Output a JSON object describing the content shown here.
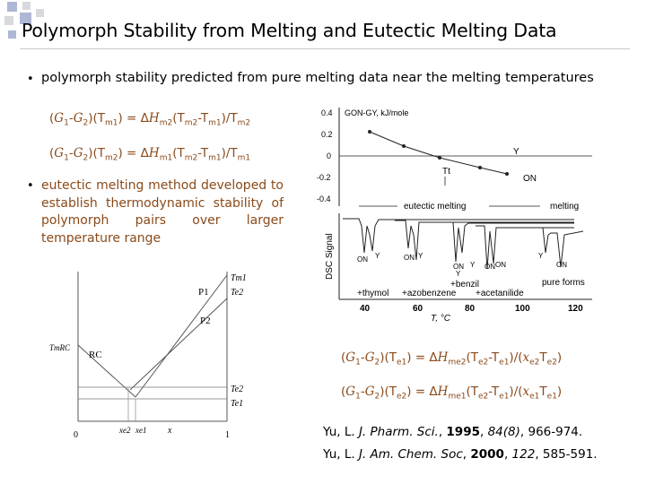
{
  "title": "Polymorph Stability from Melting and Eutectic Melting Data",
  "colors": {
    "text_brown": "#8a4a1a",
    "square_blue": "#aeb7d6",
    "square_grey": "#d7d9dd"
  },
  "bullets": [
    {
      "text": "polymorph stability predicted from pure melting data near the melting temperatures"
    },
    {
      "text": "eutectic melting method developed to establish thermodynamic stability of polymorph pairs over larger temperature range"
    }
  ],
  "equations": {
    "eq1": "(G1-G2)(Tm1) = ΔHm2(Tm2-Tm1)/Tm2",
    "eq2": "(G1-G2)(Tm2) = ΔHm1(Tm2-Tm1)/Tm1",
    "eq3": "(G1-G2)(Te1) = ΔHme2(Te2-Te1)/(xe2Te2)",
    "eq4": "(G1-G2)(Te2) = ΔHme1(Te2-Te1)/(xe1Te1)"
  },
  "dsc_figure": {
    "top_ylabel": "GON-GY, kJ/mole",
    "top_yticks": [
      "0.4",
      "0.2",
      "0",
      "-0.2",
      "-0.4"
    ],
    "top_labels": {
      "tt": "Tt",
      "y": "Y",
      "on": "ON"
    },
    "eutectic_label": "eutectic melting",
    "melting_label": "melting",
    "ylabel": "DSC Signal",
    "peak_labels": [
      "ON",
      "Y",
      "ON",
      "Y",
      "ON",
      "ON",
      "Y",
      "Y",
      "ON",
      "Y",
      "ON"
    ],
    "additives": [
      "+thymol",
      "+azobenzene",
      "+benzil",
      "+acetanilide",
      "pure forms"
    ],
    "xticks": [
      "40",
      "60",
      "80",
      "100",
      "120"
    ],
    "xlabel": "T, °C"
  },
  "phase_diagram": {
    "labels": {
      "tm1": "Tm1",
      "te2_top": "Te2",
      "p1": "P1",
      "p2": "P2",
      "tmrc": "TmRC",
      "rc": "RC",
      "te2": "Te2",
      "te1": "Te1",
      "x0": "0",
      "xe2": "xe2",
      "xe1": "xe1",
      "x": "x",
      "x1": "1"
    }
  },
  "references": [
    {
      "authors": "Yu, L.",
      "journal": "J. Pharm. Sci.",
      "year": "1995",
      "volume": "84(8)",
      "pages": "966-974."
    },
    {
      "authors": "Yu, L.",
      "journal": "J. Am. Chem. Soc",
      "year": "2000",
      "volume": "122",
      "pages": "585-591."
    }
  ]
}
